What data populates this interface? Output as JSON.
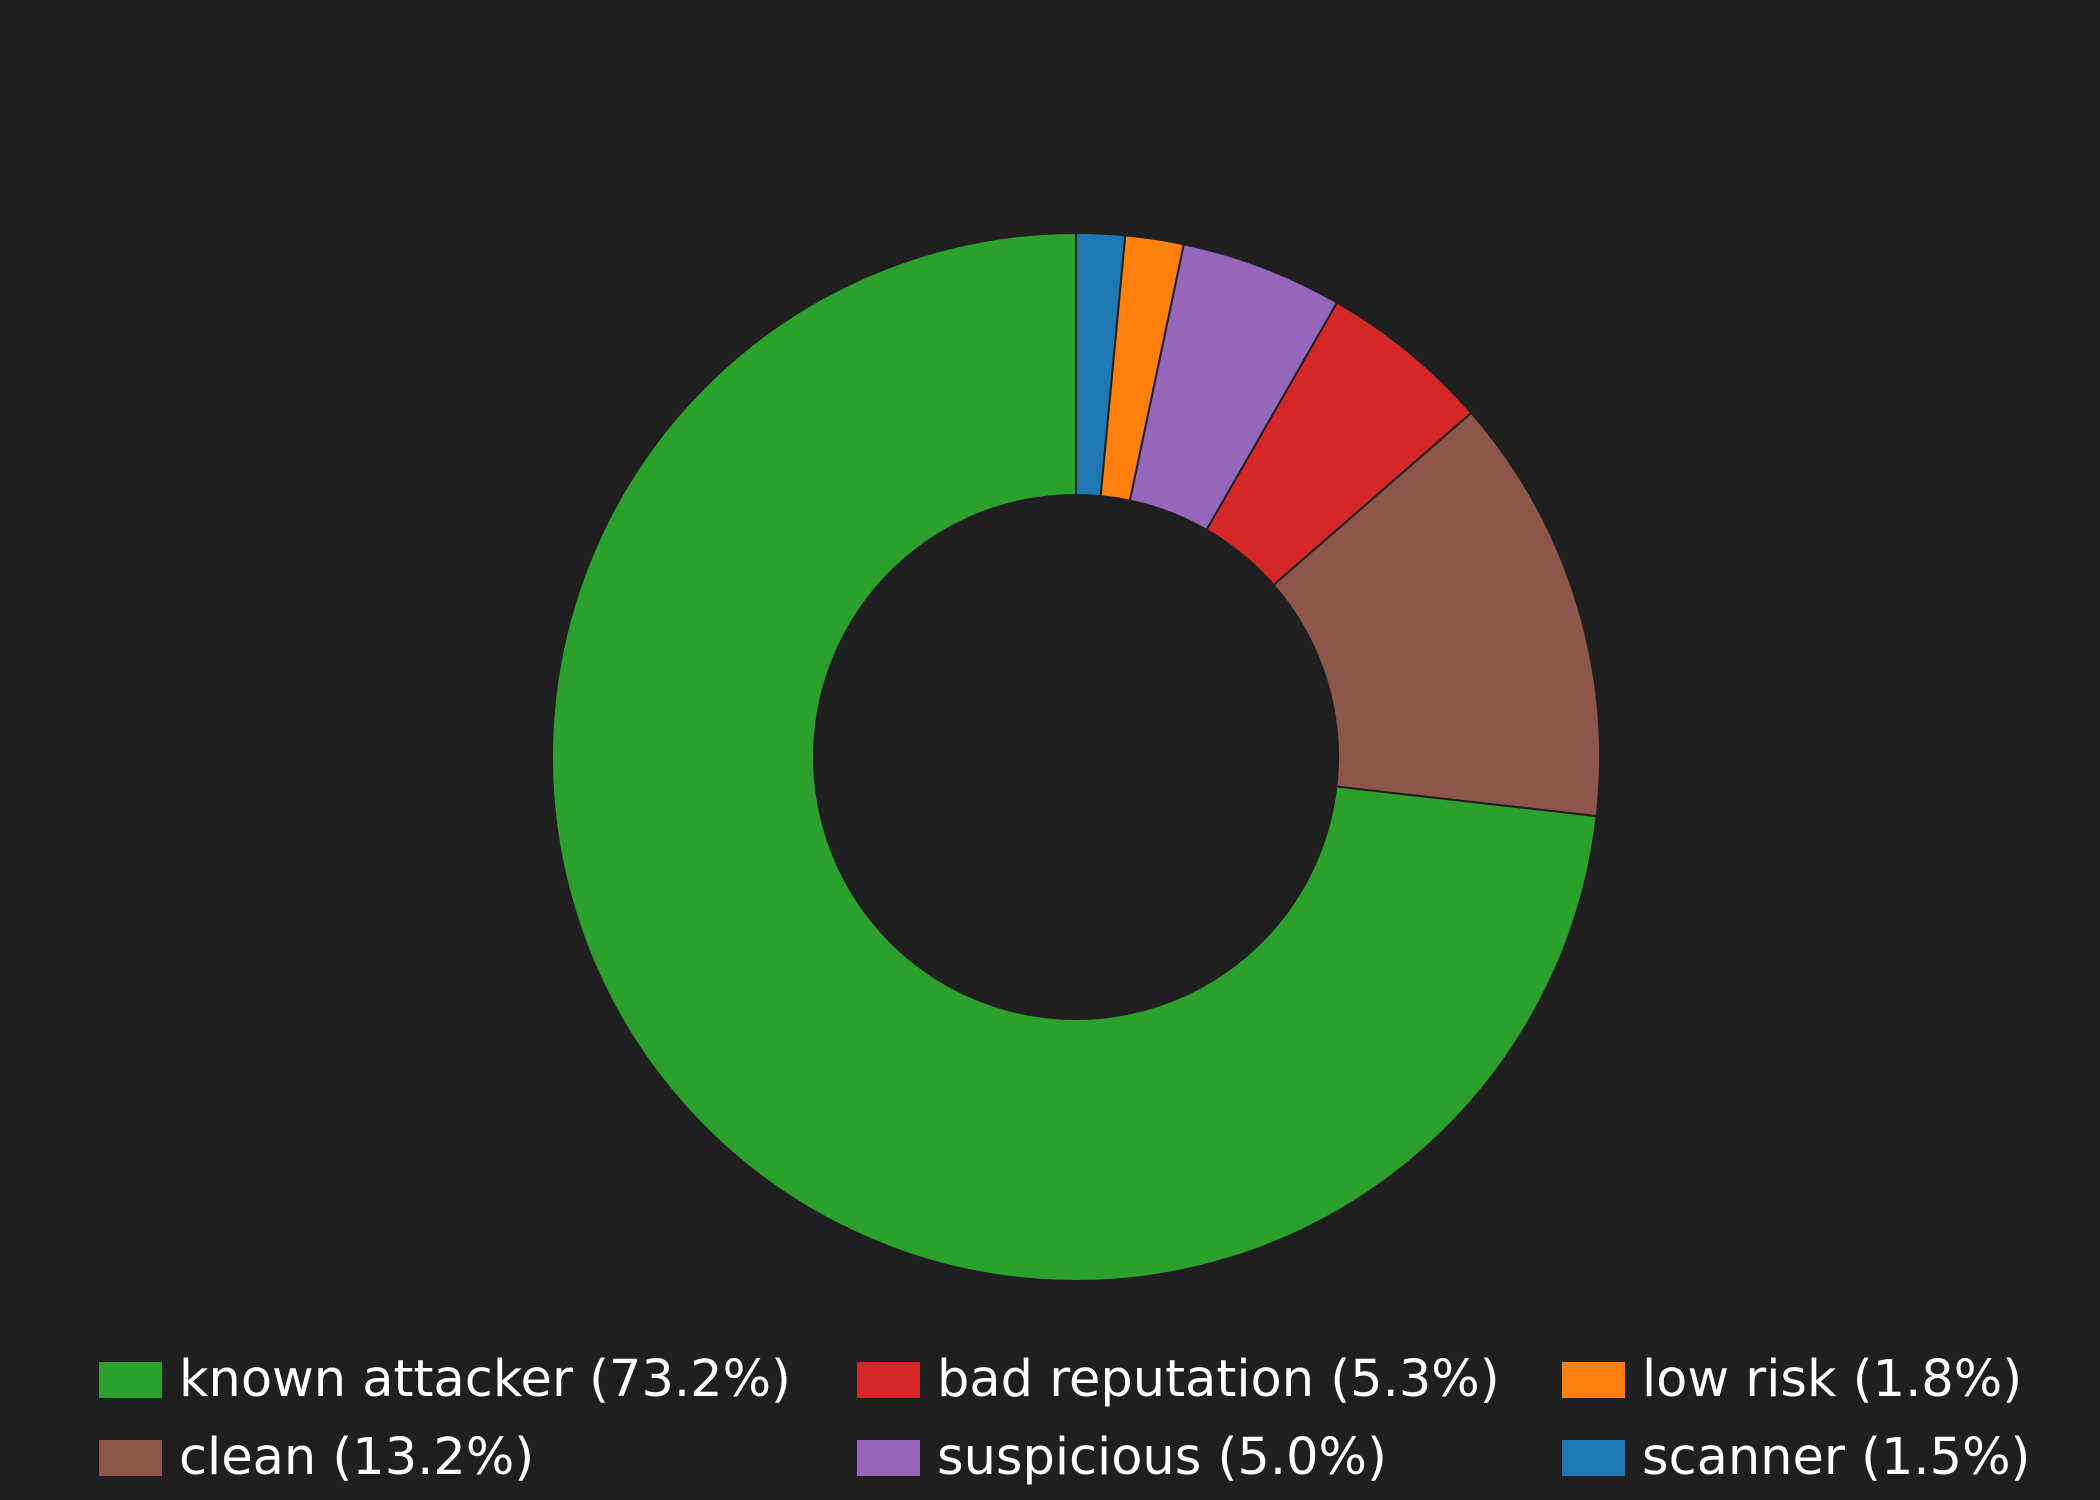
{
  "chart_data": {
    "type": "pie",
    "variant": "donut",
    "title": "",
    "slices": [
      {
        "label": "scanner",
        "value": 1.5,
        "display": "scanner (1.5%)",
        "color": "#1f77b4"
      },
      {
        "label": "low risk",
        "value": 1.8,
        "display": "low risk (1.8%)",
        "color": "#ff7f0e"
      },
      {
        "label": "suspicious",
        "value": 5.0,
        "display": "suspicious (5.0%)",
        "color": "#9467bd"
      },
      {
        "label": "bad reputation",
        "value": 5.3,
        "display": "bad reputation (5.3%)",
        "color": "#d62728"
      },
      {
        "label": "clean",
        "value": 13.2,
        "display": "clean (13.2%)",
        "color": "#8c564b"
      },
      {
        "label": "known attacker",
        "value": 73.2,
        "display": "known attacker (73.2%)",
        "color": "#2ca02c"
      }
    ],
    "legend": {
      "placement": "bottom",
      "columns": 3,
      "order": [
        "known attacker",
        "clean",
        "bad reputation",
        "suspicious",
        "low risk",
        "scanner"
      ]
    },
    "background": "#1f1f1f",
    "edge_color": "#1f1f1f"
  }
}
